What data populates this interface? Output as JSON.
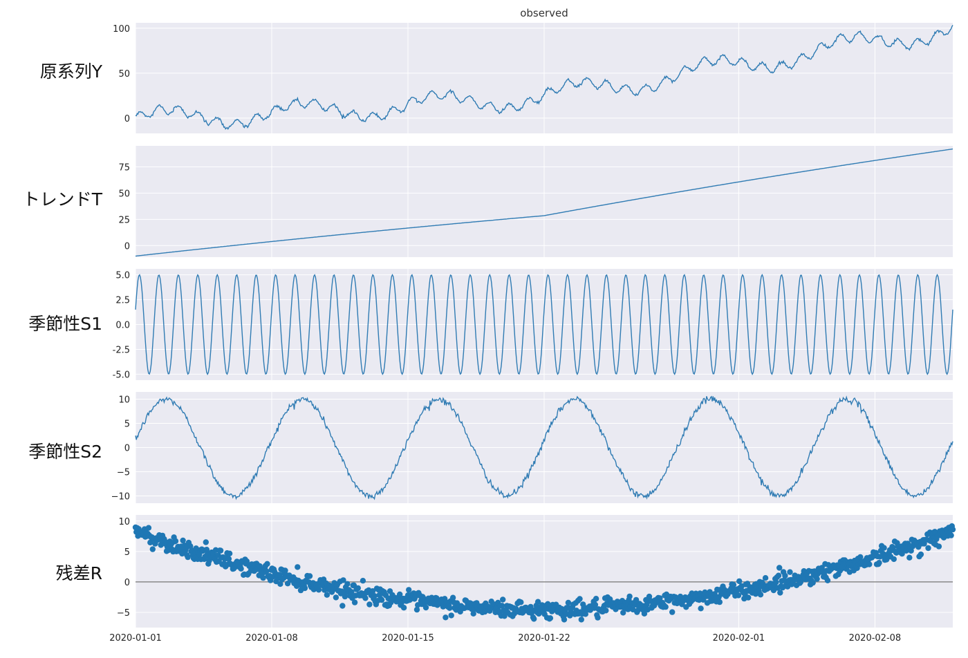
{
  "figure": {
    "title": "observed",
    "colors": {
      "line": "#2f7bb3",
      "dots": "#1f77b4",
      "panel_bg": "#eaeaf2",
      "grid": "#ffffff",
      "zero_line": "#888888"
    }
  },
  "side_labels": [
    "原系列Y",
    "トレンドT",
    "季節性S1",
    "季節性S2",
    "残差R"
  ],
  "chart_data": [
    {
      "type": "line",
      "panel": "observed",
      "x_range": [
        "2020-01-01",
        "2020-02-12"
      ],
      "xticks": [
        "2020-01-01",
        "2020-01-08",
        "2020-01-15",
        "2020-01-22",
        "2020-02-01",
        "2020-02-08"
      ],
      "ylim": [
        -17,
        106
      ],
      "yticks": [
        0,
        50,
        100
      ],
      "ytick_labels": [
        "0",
        "50",
        "100"
      ],
      "grid": true,
      "composition": "trend + seasonal_s1 + seasonal_s2 + resid"
    },
    {
      "type": "line",
      "panel": "trend",
      "x_range": [
        "2020-01-01",
        "2020-02-12"
      ],
      "ylim": [
        -11,
        95
      ],
      "yticks": [
        0,
        25,
        50,
        75
      ],
      "ytick_labels": [
        "0",
        "25",
        "50",
        "75"
      ],
      "grid": true,
      "points": [
        [
          "2020-01-01",
          -10
        ],
        [
          "2020-01-22",
          28.5
        ],
        [
          "2020-02-12",
          92
        ]
      ]
    },
    {
      "type": "line",
      "panel": "seasonal_s1",
      "x_range": [
        "2020-01-01",
        "2020-02-12"
      ],
      "ylim": [
        -5.6,
        5.6
      ],
      "yticks": [
        -5.0,
        -2.5,
        0.0,
        2.5,
        5.0
      ],
      "ytick_labels": [
        "-5.0",
        "-2.5",
        "0.0",
        "2.5",
        "5.0"
      ],
      "grid": true,
      "amplitude": 5,
      "period_days": 1,
      "start_value": 1.5
    },
    {
      "type": "line",
      "panel": "seasonal_s2",
      "x_range": [
        "2020-01-01",
        "2020-02-12"
      ],
      "ylim": [
        -11.5,
        11.5
      ],
      "yticks": [
        -10,
        -5,
        0,
        5,
        10
      ],
      "ytick_labels": [
        "−10",
        "−5",
        "0",
        "5",
        "10"
      ],
      "grid": true,
      "amplitude": 10,
      "period_days": 7,
      "start_value": 1.5
    },
    {
      "type": "scatter",
      "panel": "resid",
      "x_range": [
        "2020-01-01",
        "2020-02-12"
      ],
      "xticks": [
        "2020-01-01",
        "2020-01-08",
        "2020-01-15",
        "2020-01-22",
        "2020-02-01",
        "2020-02-08"
      ],
      "xtick_labels": [
        "2020-01-01",
        "2020-01-08",
        "2020-01-15",
        "2020-01-22",
        "2020-02-01",
        "2020-02-08"
      ],
      "ylim": [
        -7.5,
        11
      ],
      "yticks": [
        -5,
        0,
        5,
        10
      ],
      "ytick_labels": [
        "−5",
        "0",
        "5",
        "10"
      ],
      "grid": true,
      "baseline": 0,
      "curve_min": -4.6,
      "curve_max": 8.3,
      "noise_sd": 0.7
    }
  ]
}
